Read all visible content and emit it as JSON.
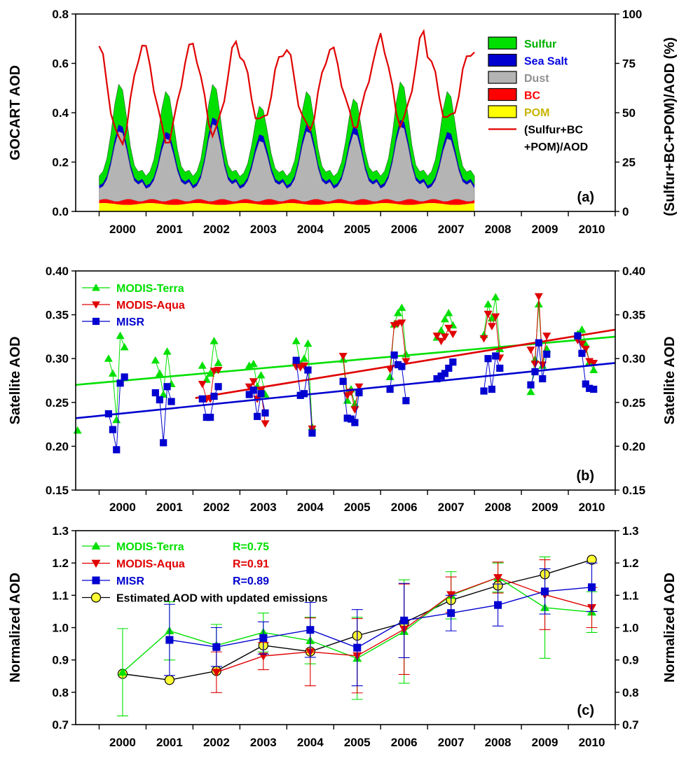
{
  "chart_data": [
    {
      "id": "a",
      "type": "area",
      "panel_label": "(a)",
      "ylabel": "GOCART AOD",
      "y2label": "(Sulfur+BC+POM)/AOD (%)",
      "ylim": [
        0,
        0.8
      ],
      "y2lim": [
        0,
        100
      ],
      "yticks": [
        "0.0",
        "0.2",
        "0.4",
        "0.6",
        "0.8"
      ],
      "y2ticks": [
        "0",
        "25",
        "50",
        "75",
        "100"
      ],
      "xlim": [
        1999.5,
        2011.0
      ],
      "xticks": [
        "2000",
        "2001",
        "2002",
        "2003",
        "2004",
        "2005",
        "2006",
        "2007",
        "2008",
        "2009",
        "2010"
      ],
      "legend_position": "top-right",
      "legend": [
        {
          "name": "Sulfur",
          "color": "#00e000",
          "text_color": "#00b000",
          "kind": "patch"
        },
        {
          "name": "Sea Salt",
          "color": "#0000d0",
          "text_color": "#0000e0",
          "kind": "patch"
        },
        {
          "name": "Dust",
          "color": "#b4b4b4",
          "text_color": "#909090",
          "kind": "patch"
        },
        {
          "name": "BC",
          "color": "#ff0000",
          "text_color": "#ff0000",
          "kind": "patch"
        },
        {
          "name": "POM",
          "color": "#ffff00",
          "text_color": "#c8b400",
          "kind": "patch"
        },
        {
          "name": "(Sulfur+BC",
          "color": "#e00000",
          "text_color": "#000000",
          "kind": "line"
        },
        {
          "name": "+POM)/AOD",
          "color": "#e00000",
          "text_color": "#000000",
          "kind": "none"
        }
      ],
      "monthly_peaks": {
        "year_start": 2000,
        "dust_summer_peak": [
          0.33,
          0.3,
          0.36,
          0.29,
          0.33,
          0.32,
          0.35,
          0.3
        ],
        "sulfur_spring_peak": [
          0.46,
          0.43,
          0.46,
          0.37,
          0.43,
          0.4,
          0.47,
          0.43
        ],
        "ratio_winter_peak_pct": [
          85,
          82,
          86,
          82,
          83,
          81,
          91,
          82
        ],
        "ratio_summer_min_pct": [
          35,
          36,
          40,
          45,
          42,
          44,
          45,
          46
        ],
        "bc_level": 0.045,
        "pom_level": 0.03
      }
    },
    {
      "id": "b",
      "type": "scatter",
      "panel_label": "(b)",
      "ylabel": "Satellite AOD",
      "y2label": "Satellite AOD",
      "ylim": [
        0.15,
        0.4
      ],
      "yticks": [
        "0.15",
        "0.20",
        "0.25",
        "0.30",
        "0.35",
        "0.40"
      ],
      "xlim": [
        1999.5,
        2011.0
      ],
      "xticks": [
        "2000",
        "2001",
        "2002",
        "2003",
        "2004",
        "2005",
        "2006",
        "2007",
        "2008",
        "2009",
        "2010"
      ],
      "legend_position": "top-left",
      "series": [
        {
          "name": "MODIS-Terra",
          "color": "#00e000",
          "marker": "triangle-up",
          "trend": [
            [
              1999.5,
              0.27
            ],
            [
              2011.0,
              0.325
            ]
          ],
          "points": [
            [
              1999.54,
              0.218
            ],
            [
              2000.2,
              0.3
            ],
            [
              2000.29,
              0.283
            ],
            [
              2000.37,
              0.23
            ],
            [
              2000.45,
              0.326
            ],
            [
              2000.54,
              0.313
            ],
            [
              2001.2,
              0.298
            ],
            [
              2001.29,
              0.283
            ],
            [
              2001.37,
              0.259
            ],
            [
              2001.45,
              0.308
            ],
            [
              2001.54,
              0.271
            ],
            [
              2002.2,
              0.292
            ],
            [
              2002.29,
              0.276
            ],
            [
              2002.37,
              0.283
            ],
            [
              2002.45,
              0.32
            ],
            [
              2002.54,
              0.295
            ],
            [
              2003.2,
              0.292
            ],
            [
              2003.29,
              0.294
            ],
            [
              2003.37,
              0.268
            ],
            [
              2003.45,
              0.281
            ],
            [
              2003.54,
              0.259
            ],
            [
              2004.2,
              0.32
            ],
            [
              2004.29,
              0.293
            ],
            [
              2004.37,
              0.3
            ],
            [
              2004.45,
              0.317
            ],
            [
              2004.54,
              0.222
            ],
            [
              2005.2,
              0.299
            ],
            [
              2005.29,
              0.252
            ],
            [
              2005.37,
              0.265
            ],
            [
              2005.45,
              0.248
            ],
            [
              2005.54,
              0.263
            ],
            [
              2006.2,
              0.279
            ],
            [
              2006.29,
              0.339
            ],
            [
              2006.37,
              0.352
            ],
            [
              2006.45,
              0.358
            ],
            [
              2006.54,
              0.305
            ],
            [
              2007.2,
              0.324
            ],
            [
              2007.29,
              0.332
            ],
            [
              2007.37,
              0.345
            ],
            [
              2007.45,
              0.352
            ],
            [
              2007.54,
              0.338
            ],
            [
              2008.2,
              0.327
            ],
            [
              2008.29,
              0.362
            ],
            [
              2008.37,
              0.346
            ],
            [
              2008.45,
              0.37
            ],
            [
              2008.54,
              0.311
            ],
            [
              2009.2,
              0.262
            ],
            [
              2009.29,
              0.299
            ],
            [
              2009.37,
              0.362
            ],
            [
              2009.45,
              0.292
            ],
            [
              2009.54,
              0.311
            ],
            [
              2010.2,
              0.328
            ],
            [
              2010.29,
              0.333
            ],
            [
              2010.37,
              0.316
            ],
            [
              2010.45,
              0.296
            ],
            [
              2010.54,
              0.287
            ]
          ]
        },
        {
          "name": "MODIS-Aqua",
          "color": "#e00000",
          "marker": "triangle-down",
          "trend": [
            [
              2002.05,
              0.255
            ],
            [
              2011.0,
              0.333
            ]
          ],
          "points": [
            [
              2002.2,
              0.271
            ],
            [
              2002.29,
              0.254
            ],
            [
              2002.37,
              0.254
            ],
            [
              2002.45,
              0.286
            ],
            [
              2002.54,
              0.287
            ],
            [
              2003.2,
              0.268
            ],
            [
              2003.29,
              0.274
            ],
            [
              2003.37,
              0.254
            ],
            [
              2003.45,
              0.264
            ],
            [
              2003.54,
              0.226
            ],
            [
              2004.2,
              0.291
            ],
            [
              2004.29,
              0.29
            ],
            [
              2004.37,
              0.292
            ],
            [
              2004.45,
              0.286
            ],
            [
              2004.54,
              0.22
            ],
            [
              2005.2,
              0.303
            ],
            [
              2005.29,
              0.258
            ],
            [
              2005.37,
              0.262
            ],
            [
              2005.45,
              0.242
            ],
            [
              2005.54,
              0.268
            ],
            [
              2006.2,
              0.288
            ],
            [
              2006.29,
              0.338
            ],
            [
              2006.37,
              0.34
            ],
            [
              2006.45,
              0.341
            ],
            [
              2006.54,
              0.297
            ],
            [
              2007.2,
              0.326
            ],
            [
              2007.29,
              0.32
            ],
            [
              2007.37,
              0.325
            ],
            [
              2007.45,
              0.335
            ],
            [
              2007.54,
              0.328
            ],
            [
              2008.2,
              0.323
            ],
            [
              2008.29,
              0.351
            ],
            [
              2008.37,
              0.337
            ],
            [
              2008.45,
              0.348
            ],
            [
              2008.54,
              0.301
            ],
            [
              2009.2,
              0.31
            ],
            [
              2009.29,
              0.294
            ],
            [
              2009.37,
              0.371
            ],
            [
              2009.45,
              0.293
            ],
            [
              2009.54,
              0.326
            ],
            [
              2010.2,
              0.321
            ],
            [
              2010.29,
              0.317
            ],
            [
              2010.37,
              0.311
            ],
            [
              2010.45,
              0.297
            ],
            [
              2010.54,
              0.295
            ]
          ]
        },
        {
          "name": "MISR",
          "color": "#0000d0",
          "marker": "square",
          "trend": [
            [
              1999.5,
              0.232
            ],
            [
              2011.0,
              0.295
            ]
          ],
          "points": [
            [
              2000.2,
              0.237
            ],
            [
              2000.29,
              0.219
            ],
            [
              2000.37,
              0.196
            ],
            [
              2000.45,
              0.272
            ],
            [
              2000.54,
              0.279
            ],
            [
              2001.2,
              0.261
            ],
            [
              2001.29,
              0.253
            ],
            [
              2001.37,
              0.204
            ],
            [
              2001.45,
              0.268
            ],
            [
              2001.54,
              0.251
            ],
            [
              2002.2,
              0.254
            ],
            [
              2002.29,
              0.233
            ],
            [
              2002.37,
              0.233
            ],
            [
              2002.45,
              0.257
            ],
            [
              2002.54,
              0.268
            ],
            [
              2003.2,
              0.259
            ],
            [
              2003.29,
              0.264
            ],
            [
              2003.37,
              0.234
            ],
            [
              2003.45,
              0.26
            ],
            [
              2003.54,
              0.238
            ],
            [
              2004.2,
              0.298
            ],
            [
              2004.29,
              0.258
            ],
            [
              2004.37,
              0.26
            ],
            [
              2004.45,
              0.287
            ],
            [
              2004.54,
              0.215
            ],
            [
              2005.2,
              0.274
            ],
            [
              2005.29,
              0.232
            ],
            [
              2005.37,
              0.231
            ],
            [
              2005.45,
              0.227
            ],
            [
              2005.54,
              0.261
            ],
            [
              2006.2,
              0.265
            ],
            [
              2006.29,
              0.304
            ],
            [
              2006.37,
              0.293
            ],
            [
              2006.45,
              0.291
            ],
            [
              2006.54,
              0.252
            ],
            [
              2007.2,
              0.277
            ],
            [
              2007.29,
              0.28
            ],
            [
              2007.37,
              0.283
            ],
            [
              2007.45,
              0.289
            ],
            [
              2007.54,
              0.296
            ],
            [
              2008.2,
              0.263
            ],
            [
              2008.29,
              0.3
            ],
            [
              2008.37,
              0.265
            ],
            [
              2008.45,
              0.303
            ],
            [
              2008.54,
              0.289
            ],
            [
              2009.2,
              0.27
            ],
            [
              2009.29,
              0.285
            ],
            [
              2009.37,
              0.318
            ],
            [
              2009.45,
              0.277
            ],
            [
              2009.54,
              0.305
            ],
            [
              2010.2,
              0.326
            ],
            [
              2010.29,
              0.306
            ],
            [
              2010.37,
              0.271
            ],
            [
              2010.45,
              0.266
            ],
            [
              2010.54,
              0.265
            ]
          ]
        }
      ]
    },
    {
      "id": "c",
      "type": "line",
      "panel_label": "(c)",
      "ylabel": "Normalized AOD",
      "y2label": "Normalized AOD",
      "ylim": [
        0.7,
        1.3
      ],
      "yticks": [
        "0.7",
        "0.8",
        "0.9",
        "1.0",
        "1.1",
        "1.2",
        "1.3"
      ],
      "xlim": [
        1999.5,
        2011.0
      ],
      "xticks": [
        "2000",
        "2001",
        "2002",
        "2003",
        "2004",
        "2005",
        "2006",
        "2007",
        "2008",
        "2009",
        "2010"
      ],
      "legend_position": "top-left",
      "series": [
        {
          "name": "MODIS-Terra",
          "r_label": "R=0.75",
          "color": "#00e000",
          "marker": "triangle-up",
          "x": [
            2000,
            2001,
            2002,
            2003,
            2004,
            2005,
            2006,
            2007,
            2008,
            2009,
            2010
          ],
          "values": [
            0.862,
            0.99,
            0.945,
            0.985,
            0.96,
            0.905,
            0.988,
            1.1,
            1.155,
            1.062,
            1.048
          ],
          "error": [
            0.135,
            0.09,
            0.065,
            0.06,
            0.072,
            0.127,
            0.16,
            0.073,
            0.045,
            0.157,
            0.063
          ]
        },
        {
          "name": "MODIS-Aqua",
          "r_label": "R=0.91",
          "color": "#e00000",
          "marker": "triangle-down",
          "x": [
            2002,
            2003,
            2004,
            2005,
            2006,
            2007,
            2008,
            2009,
            2010
          ],
          "values": [
            0.862,
            0.912,
            0.925,
            0.913,
            0.995,
            1.102,
            1.155,
            1.102,
            1.062
          ],
          "error": [
            0.063,
            0.042,
            0.105,
            0.115,
            0.14,
            0.055,
            0.048,
            0.108,
            0.062
          ]
        },
        {
          "name": "MISR",
          "r_label": "R=0.89",
          "color": "#0000d0",
          "marker": "square",
          "x": [
            2001,
            2002,
            2003,
            2004,
            2005,
            2006,
            2007,
            2008,
            2009,
            2010
          ],
          "values": [
            0.962,
            0.94,
            0.968,
            0.993,
            0.938,
            1.022,
            1.045,
            1.07,
            1.112,
            1.125
          ],
          "error": [
            0.11,
            0.06,
            0.05,
            0.085,
            0.118,
            0.115,
            0.055,
            0.065,
            0.07,
            0.075
          ]
        },
        {
          "name": "Estimated AOD with updated emissions",
          "r_label": "",
          "color": "#000000",
          "marker": "circle",
          "x": [
            2000,
            2001,
            2002,
            2003,
            2004,
            2005,
            2006,
            2007,
            2008,
            2009,
            2010
          ],
          "values": [
            0.857,
            0.838,
            0.866,
            0.945,
            0.926,
            0.975,
            1.015,
            1.085,
            1.13,
            1.165,
            1.21
          ],
          "error": null
        }
      ]
    }
  ]
}
